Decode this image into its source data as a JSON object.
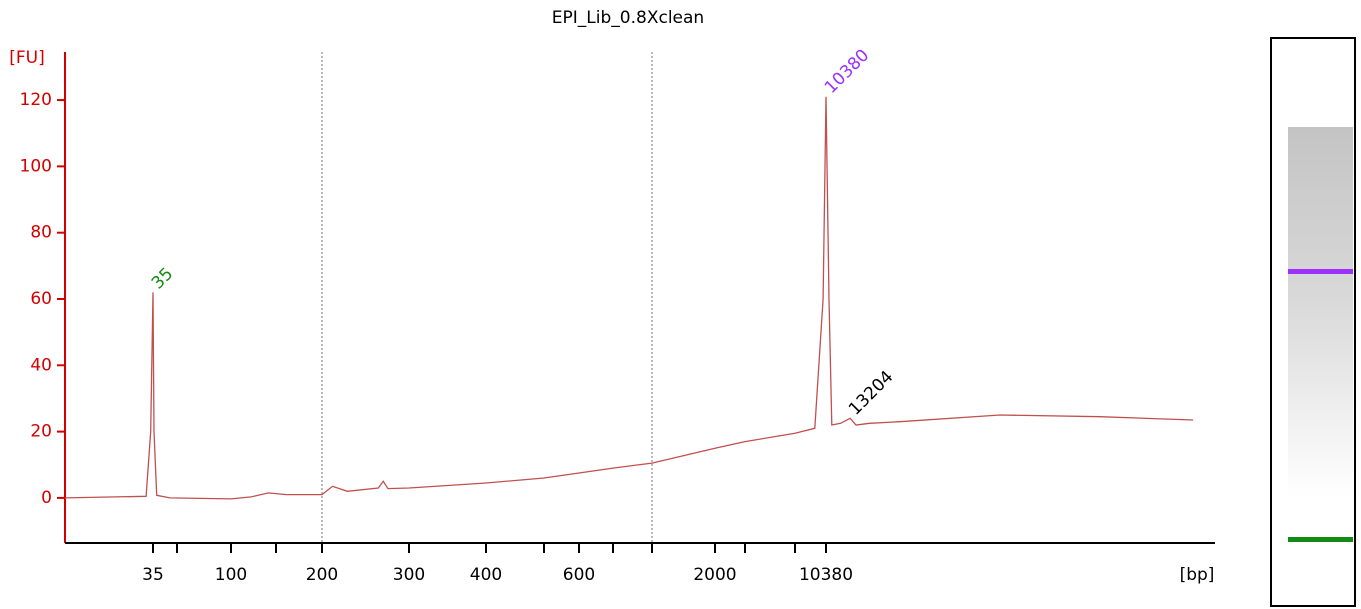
{
  "chart_data": {
    "type": "line",
    "title": "EPI_Lib_0.8Xclean",
    "y_label": "[FU]",
    "x_label": "[bp]",
    "color": "#c0504d",
    "axis_color": "#d40000",
    "ylim": [
      -13.6,
      134.5
    ],
    "yticks": [
      0,
      20,
      40,
      60,
      80,
      100,
      120
    ],
    "xlim": [
      20,
      500000
    ],
    "xticks": [
      35,
      {
        "value": 50,
        "label": null
      },
      100,
      {
        "value": 150,
        "label": null
      },
      200,
      300,
      400,
      {
        "value": 500,
        "label": null
      },
      600,
      {
        "value": 700,
        "label": null
      },
      {
        "value": 1000,
        "label": null
      },
      2000,
      {
        "value": 3000,
        "label": null
      },
      {
        "value": 7000,
        "label": null
      },
      10380
    ],
    "vlines": [
      200,
      1000
    ],
    "x": [
      20,
      33.5,
      34.5,
      35,
      35.5,
      37,
      45,
      100,
      120,
      140,
      160,
      200,
      210,
      225,
      260,
      266,
      272,
      300,
      400,
      500,
      600,
      700,
      1000,
      2000,
      3000,
      7000,
      9000,
      10000,
      10380,
      10700,
      11000,
      12000,
      13204,
      14000,
      16000,
      21700,
      58700,
      159000,
      402000
    ],
    "values": [
      0,
      0.5,
      20,
      62,
      20,
      0.8,
      0,
      -0.3,
      0.3,
      1.5,
      1,
      1,
      3.5,
      2,
      3,
      5,
      2.8,
      3,
      4.5,
      6,
      7.5,
      9,
      10.5,
      15,
      17,
      19.5,
      21,
      60,
      121,
      60,
      22,
      22.5,
      24,
      22,
      22.5,
      23,
      25,
      24.5,
      23.5
    ],
    "peaks": [
      {
        "label": "35",
        "x": 35,
        "y": 62,
        "color": "#138a13"
      },
      {
        "label": "10380",
        "x": 10380,
        "y": 121,
        "color": "#9b30ff"
      },
      {
        "label": "13204",
        "x": 13204,
        "y": 24,
        "color": "#000000"
      }
    ]
  }
}
